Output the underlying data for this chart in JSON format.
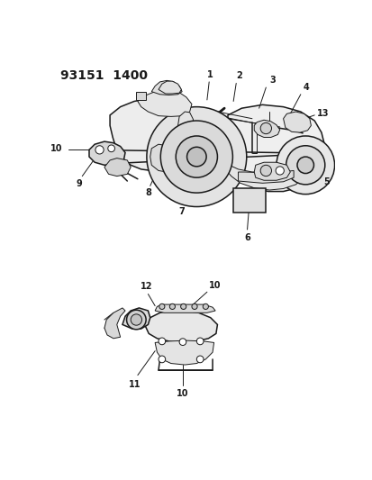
{
  "title": "93151  1400",
  "background_color": "#ffffff",
  "fig_width": 4.14,
  "fig_height": 5.33,
  "dpi": 100,
  "label_fontsize": 7,
  "label_fontweight": "bold",
  "line_color": "#1a1a1a",
  "line_width": 0.7,
  "fill_light": "#e8e8e8",
  "fill_mid": "#d4d4d4",
  "fill_dark": "#bbbbbb",
  "title_fontsize": 10
}
